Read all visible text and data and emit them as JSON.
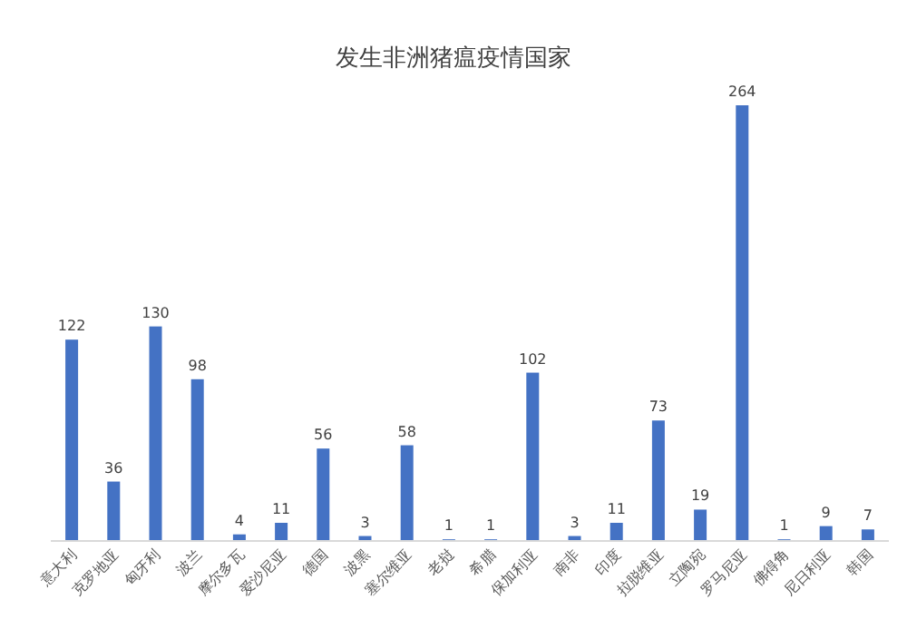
{
  "chart_data": {
    "type": "bar",
    "title": "发生非洲猪瘟疫情国家",
    "categories": [
      "意大利",
      "克罗地亚",
      "匈牙利",
      "波兰",
      "摩尔多瓦",
      "爱沙尼亚",
      "德国",
      "波黑",
      "塞尔维亚",
      "老挝",
      "希腊",
      "保加利亚",
      "南非",
      "印度",
      "拉脱维亚",
      "立陶宛",
      "罗马尼亚",
      "佛得角",
      "尼日利亚",
      "韩国"
    ],
    "values": [
      122,
      36,
      130,
      98,
      4,
      11,
      56,
      3,
      58,
      1,
      1,
      102,
      3,
      11,
      73,
      19,
      264,
      1,
      9,
      7
    ],
    "color": "#4472c4",
    "data_labels": true
  }
}
